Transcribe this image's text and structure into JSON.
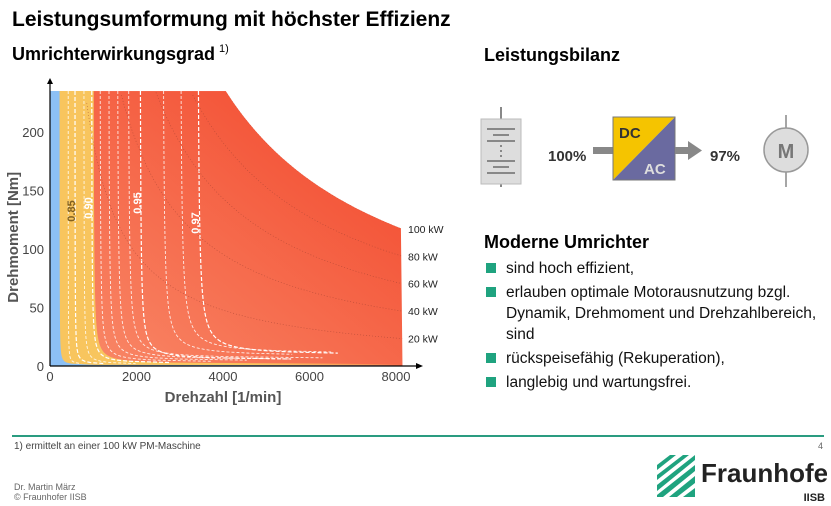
{
  "title": "Leistungsumformung mit höchster Effizienz",
  "subtitle": "Umrichterwirkungsgrad",
  "subtitle_note": "1)",
  "balance": {
    "heading": "Leistungsbilanz",
    "in": "100%",
    "out": "97%",
    "dc": "DC",
    "ac": "AC",
    "motor": "M",
    "icons": [
      "battery-icon",
      "converter-icon",
      "motor-icon"
    ]
  },
  "bullets": {
    "heading": "Moderne Umrichter",
    "items": [
      "sind hoch effizient,",
      "erlauben optimale Motorausnutzung bzgl. Dynamik, Drehmoment und Drehzahlbereich, sind",
      "rückspeisefähig (Rekuperation),",
      "langlebig und wartungsfrei."
    ]
  },
  "footer": {
    "note": "1) ermittelt an einer 100 kW PM-Maschine",
    "page": "4",
    "author": "Dr. Martin März",
    "copyright": "© Fraunhofer IISB",
    "logo_text": "Fraunhofer",
    "logo_sub": "IISB"
  },
  "colors": {
    "accent": "#1fa37f",
    "red": "#f2563a",
    "yellow": "#f8c55e",
    "blue": "#8cc0f5",
    "dc": "#f5c400",
    "ac": "#6a6aa0"
  },
  "chart_data": {
    "type": "heatmap",
    "xlabel": "Drehzahl  [1/min]",
    "ylabel": "Drehmoment  [Nm]",
    "xlim": [
      0,
      8150
    ],
    "ylim": [
      0,
      235
    ],
    "xticks": [
      "0",
      "2000",
      "4000",
      "6000",
      "8000"
    ],
    "xtick_values": [
      0,
      2000,
      4000,
      6000,
      8000
    ],
    "yticks": [
      "0",
      "50",
      "100",
      "150",
      "200"
    ],
    "ytick_values": [
      0,
      50,
      100,
      150,
      200
    ],
    "max_power_kw": 100,
    "power_lines": [
      {
        "label": "100 kW",
        "kw": 100
      },
      {
        "label": "80 kW",
        "kw": 80
      },
      {
        "label": "60 kW",
        "kw": 60
      },
      {
        "label": "40 kW",
        "kw": 40
      },
      {
        "label": "20 kW",
        "kw": 20
      }
    ],
    "efficiency_contours": [
      {
        "label": "0.85",
        "n": 580
      },
      {
        "label": "0.90",
        "n": 970
      },
      {
        "label": "0.95",
        "n": 2100
      },
      {
        "label": "0.97",
        "n": 3450
      }
    ]
  }
}
